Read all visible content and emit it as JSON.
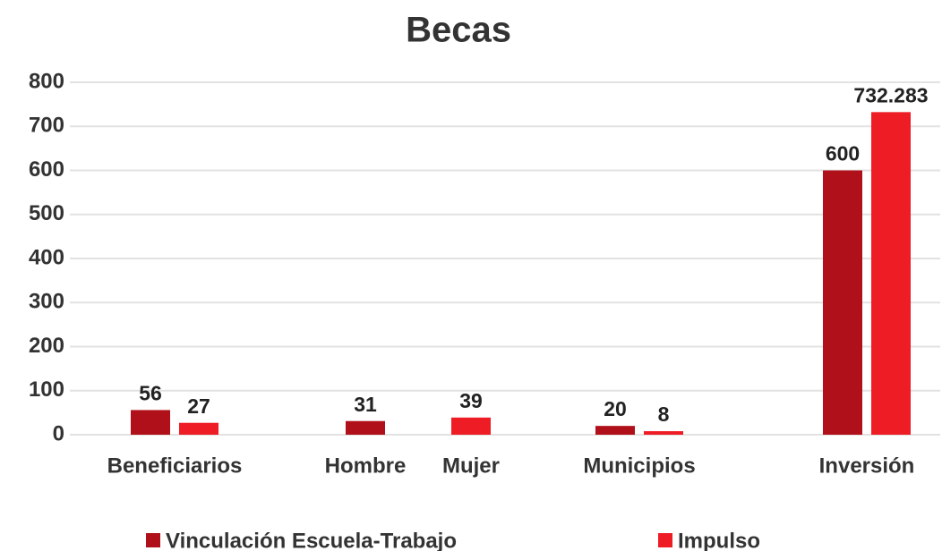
{
  "chart_data": {
    "type": "bar",
    "title": "Becas",
    "categories": [
      "Beneficiarios",
      "Hombre",
      "Mujer",
      "Municipios",
      "Inversión"
    ],
    "series": [
      {
        "name": "Vinculación Escuela-Trabajo",
        "color": "#b0101a",
        "values": [
          56,
          31,
          null,
          20,
          600
        ]
      },
      {
        "name": "Impulso",
        "color": "#ee1c25",
        "values": [
          27,
          null,
          39,
          8,
          732.283
        ]
      }
    ],
    "ylim": [
      0,
      800
    ],
    "yticks": [
      0,
      100,
      200,
      300,
      400,
      500,
      600,
      700,
      800
    ],
    "grid": true,
    "legend": "bottom"
  }
}
